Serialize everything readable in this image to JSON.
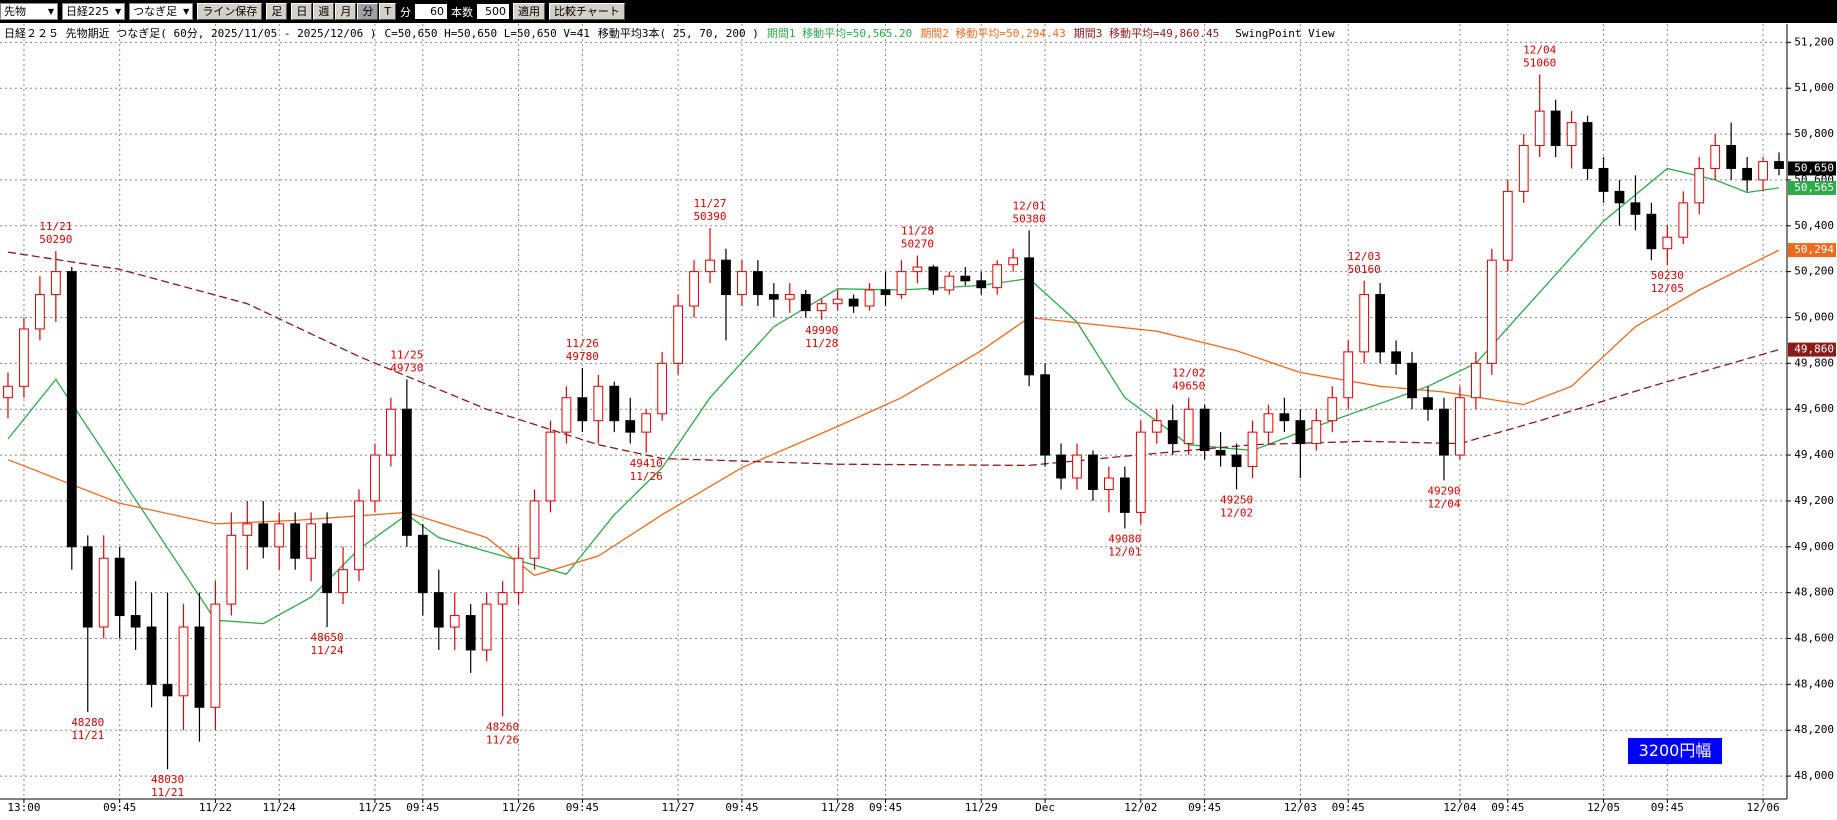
{
  "toolbar": {
    "market": "先物",
    "symbol": "日経225",
    "bar_type": "つなぎ足",
    "save_button": "ライン保存",
    "bar_label": "足",
    "periods": [
      "日",
      "週",
      "月",
      "分",
      "T"
    ],
    "active_period": "分",
    "interval_label": "分",
    "interval": 60,
    "count_label": "本数",
    "count": 500,
    "apply": "適用",
    "compare": "比較チャート"
  },
  "chart_data": {
    "type": "candlestick",
    "title": "日経２２５ 先物期近 つなぎ足( 60分, 2025/11/05 - 2025/12/06 )",
    "ohlc_summary": "C=50,650 H=50,650 L=50,650 V=41",
    "ma_title": "移動平均3本( 25, 70, 200 )",
    "indicator_label": "SwingPoint View",
    "up_color": "#e00000",
    "down_color": "#000000",
    "ohlc": [
      [
        49650,
        49760,
        49560,
        49700
      ],
      [
        49700,
        50000,
        49650,
        49950
      ],
      [
        49950,
        50180,
        49900,
        50100
      ],
      [
        50100,
        50290,
        49980,
        50200
      ],
      [
        50200,
        50220,
        48900,
        49000
      ],
      [
        49000,
        49050,
        48280,
        48650
      ],
      [
        48650,
        49050,
        48600,
        48950
      ],
      [
        48950,
        49000,
        48600,
        48700
      ],
      [
        48700,
        48850,
        48550,
        48650
      ],
      [
        48650,
        48800,
        48300,
        48400
      ],
      [
        48400,
        48800,
        48030,
        48350
      ],
      [
        48350,
        48750,
        48200,
        48650
      ],
      [
        48650,
        48800,
        48150,
        48300
      ],
      [
        48300,
        48850,
        48200,
        48750
      ],
      [
        48750,
        49150,
        48700,
        49050
      ],
      [
        49050,
        49200,
        48900,
        49100
      ],
      [
        49100,
        49200,
        48950,
        49000
      ],
      [
        49000,
        49150,
        48900,
        49100
      ],
      [
        49100,
        49150,
        48900,
        48950
      ],
      [
        48950,
        49150,
        48850,
        49100
      ],
      [
        49100,
        49150,
        48650,
        48800
      ],
      [
        48800,
        49000,
        48750,
        48900
      ],
      [
        48900,
        49250,
        48850,
        49200
      ],
      [
        49200,
        49450,
        49150,
        49400
      ],
      [
        49400,
        49650,
        49350,
        49600
      ],
      [
        49600,
        49730,
        49000,
        49050
      ],
      [
        49050,
        49100,
        48700,
        48800
      ],
      [
        48800,
        48900,
        48550,
        48650
      ],
      [
        48650,
        48800,
        48550,
        48700
      ],
      [
        48700,
        48750,
        48450,
        48550
      ],
      [
        48550,
        48800,
        48500,
        48750
      ],
      [
        48750,
        48850,
        48260,
        48800
      ],
      [
        48800,
        49000,
        48750,
        48950
      ],
      [
        48950,
        49250,
        48900,
        49200
      ],
      [
        49200,
        49550,
        49150,
        49500
      ],
      [
        49500,
        49700,
        49450,
        49650
      ],
      [
        49650,
        49780,
        49500,
        49550
      ],
      [
        49550,
        49750,
        49450,
        49700
      ],
      [
        49700,
        49720,
        49500,
        49550
      ],
      [
        49550,
        49650,
        49450,
        49500
      ],
      [
        49500,
        49600,
        49410,
        49580
      ],
      [
        49580,
        49850,
        49550,
        49800
      ],
      [
        49800,
        50100,
        49750,
        50050
      ],
      [
        50050,
        50250,
        50000,
        50200
      ],
      [
        50200,
        50390,
        50150,
        50250
      ],
      [
        50250,
        50300,
        49900,
        50100
      ],
      [
        50100,
        50250,
        50050,
        50200
      ],
      [
        50200,
        50250,
        50050,
        50100
      ],
      [
        50100,
        50150,
        50000,
        50080
      ],
      [
        50080,
        50150,
        50020,
        50100
      ],
      [
        50100,
        50120,
        50000,
        50030
      ],
      [
        50030,
        50080,
        49990,
        50060
      ],
      [
        50060,
        50120,
        50030,
        50080
      ],
      [
        50080,
        50100,
        50020,
        50050
      ],
      [
        50050,
        50150,
        50030,
        50120
      ],
      [
        50120,
        50200,
        50050,
        50100
      ],
      [
        50100,
        50250,
        50080,
        50200
      ],
      [
        50200,
        50270,
        50150,
        50220
      ],
      [
        50220,
        50230,
        50100,
        50120
      ],
      [
        50120,
        50200,
        50100,
        50180
      ],
      [
        50180,
        50220,
        50140,
        50160
      ],
      [
        50160,
        50200,
        50100,
        50130
      ],
      [
        50130,
        50250,
        50100,
        50230
      ],
      [
        50230,
        50300,
        50200,
        50260
      ],
      [
        50260,
        50380,
        49700,
        49750
      ],
      [
        49750,
        49800,
        49350,
        49400
      ],
      [
        49400,
        49450,
        49250,
        49300
      ],
      [
        49300,
        49450,
        49250,
        49400
      ],
      [
        49400,
        49420,
        49200,
        49250
      ],
      [
        49250,
        49350,
        49150,
        49300
      ],
      [
        49300,
        49350,
        49080,
        49150
      ],
      [
        49150,
        49550,
        49100,
        49500
      ],
      [
        49500,
        49600,
        49450,
        49550
      ],
      [
        49550,
        49620,
        49400,
        49450
      ],
      [
        49450,
        49650,
        49400,
        49600
      ],
      [
        49600,
        49620,
        49380,
        49420
      ],
      [
        49420,
        49500,
        49350,
        49400
      ],
      [
        49400,
        49450,
        49250,
        49350
      ],
      [
        49350,
        49550,
        49300,
        49500
      ],
      [
        49500,
        49620,
        49450,
        49580
      ],
      [
        49580,
        49650,
        49500,
        49550
      ],
      [
        49550,
        49600,
        49300,
        49450
      ],
      [
        49450,
        49600,
        49420,
        49550
      ],
      [
        49550,
        49700,
        49500,
        49650
      ],
      [
        49650,
        49900,
        49600,
        49850
      ],
      [
        49850,
        50160,
        49800,
        50100
      ],
      [
        50100,
        50150,
        49800,
        49850
      ],
      [
        49850,
        49900,
        49750,
        49800
      ],
      [
        49800,
        49850,
        49600,
        49650
      ],
      [
        49650,
        49700,
        49550,
        49600
      ],
      [
        49600,
        49650,
        49290,
        49400
      ],
      [
        49400,
        49700,
        49380,
        49650
      ],
      [
        49650,
        49850,
        49600,
        49800
      ],
      [
        49800,
        50300,
        49750,
        50250
      ],
      [
        50250,
        50600,
        50200,
        50550
      ],
      [
        50550,
        50800,
        50500,
        50750
      ],
      [
        50750,
        51060,
        50700,
        50900
      ],
      [
        50900,
        50950,
        50700,
        50750
      ],
      [
        50750,
        50900,
        50650,
        50850
      ],
      [
        50850,
        50880,
        50600,
        50650
      ],
      [
        50650,
        50700,
        50500,
        50550
      ],
      [
        50550,
        50600,
        50400,
        50500
      ],
      [
        50500,
        50620,
        50380,
        50450
      ],
      [
        50450,
        50500,
        50250,
        50300
      ],
      [
        50300,
        50400,
        50230,
        50350
      ],
      [
        50350,
        50550,
        50320,
        50500
      ],
      [
        50500,
        50700,
        50450,
        50650
      ],
      [
        50650,
        50800,
        50600,
        50750
      ],
      [
        50750,
        50850,
        50600,
        50650
      ],
      [
        50650,
        50700,
        50550,
        50600
      ],
      [
        50600,
        50700,
        50550,
        50680
      ],
      [
        50680,
        50720,
        50620,
        50650
      ]
    ],
    "series": [
      {
        "name": "期間1 移動平均=50,565.20",
        "color": "#2eaa4a",
        "dash": false,
        "x": [
          0,
          3,
          13,
          16,
          19,
          22,
          25,
          27,
          31,
          35,
          38,
          41,
          44,
          48,
          52,
          56,
          61,
          64,
          67,
          70,
          74,
          78,
          81,
          85,
          89,
          92,
          96,
          100,
          104,
          107,
          109,
          111
        ],
        "values": [
          49470,
          49730,
          48680,
          48665,
          48780,
          48990,
          49140,
          49040,
          48960,
          48880,
          49140,
          49345,
          49650,
          49960,
          50125,
          50120,
          50140,
          50170,
          49980,
          49650,
          49445,
          49420,
          49500,
          49600,
          49700,
          49800,
          50110,
          50420,
          50650,
          50600,
          50545,
          50565
        ]
      },
      {
        "name": "期間2 移動平均=50,294.43",
        "color": "#f06a1e",
        "dash": false,
        "x": [
          0,
          7,
          13,
          18,
          25,
          30,
          33,
          37,
          41,
          46,
          52,
          56,
          61,
          64,
          68,
          72,
          77,
          81,
          86,
          90,
          95,
          98,
          102,
          106,
          111
        ],
        "values": [
          49380,
          49190,
          49100,
          49115,
          49150,
          49040,
          48875,
          48960,
          49140,
          49345,
          49525,
          49650,
          49855,
          50000,
          49970,
          49940,
          49855,
          49760,
          49700,
          49675,
          49620,
          49700,
          49960,
          50120,
          50294
        ]
      },
      {
        "name": "期間3 移動平均=49,860.45",
        "color": "#8b1a1a",
        "dash": true,
        "x": [
          0,
          7,
          15,
          22,
          30,
          37,
          41,
          52,
          64,
          70,
          78,
          85,
          91,
          96,
          103,
          111
        ],
        "values": [
          50285,
          50210,
          50060,
          49830,
          49600,
          49445,
          49385,
          49360,
          49355,
          49395,
          49445,
          49460,
          49450,
          49550,
          49700,
          49860
        ]
      }
    ],
    "xticks": [
      {
        "value": 1,
        "label": "13:00"
      },
      {
        "value": 7,
        "label": "09:45"
      },
      {
        "value": 13,
        "label": "11/22"
      },
      {
        "value": 17,
        "label": "11/24"
      },
      {
        "value": 23,
        "label": "11/25"
      },
      {
        "value": 26,
        "label": "09:45"
      },
      {
        "value": 32,
        "label": "11/26"
      },
      {
        "value": 36,
        "label": "09:45"
      },
      {
        "value": 42,
        "label": "11/27"
      },
      {
        "value": 46,
        "label": "09:45"
      },
      {
        "value": 52,
        "label": "11/28"
      },
      {
        "value": 55,
        "label": "09:45"
      },
      {
        "value": 61,
        "label": "11/29"
      },
      {
        "value": 65,
        "label": "Dec"
      },
      {
        "value": 71,
        "label": "12/02"
      },
      {
        "value": 75,
        "label": "09:45"
      },
      {
        "value": 81,
        "label": "12/03"
      },
      {
        "value": 84,
        "label": "09:45"
      },
      {
        "value": 91,
        "label": "12/04"
      },
      {
        "value": 94,
        "label": "09:45"
      },
      {
        "value": 100,
        "label": "12/05"
      },
      {
        "value": 104,
        "label": "09:45"
      },
      {
        "value": 110,
        "label": "12/06"
      }
    ],
    "xlim": [
      -0.5,
      111.5
    ],
    "ylim": [
      47900,
      51280
    ],
    "yticks": [
      {
        "value": 48000,
        "label": "48,000"
      },
      {
        "value": 48200,
        "label": "48,200"
      },
      {
        "value": 48400,
        "label": "48,400"
      },
      {
        "value": 48600,
        "label": "48,600"
      },
      {
        "value": 48800,
        "label": "48,800"
      },
      {
        "value": 49000,
        "label": "49,000"
      },
      {
        "value": 49200,
        "label": "49,200"
      },
      {
        "value": 49400,
        "label": "49,400"
      },
      {
        "value": 49600,
        "label": "49,600"
      },
      {
        "value": 49800,
        "label": "49,800"
      },
      {
        "value": 50000,
        "label": "50,000"
      },
      {
        "value": 50200,
        "label": "50,200"
      },
      {
        "value": 50400,
        "label": "50,400"
      },
      {
        "value": 50600,
        "label": "50,600"
      },
      {
        "value": 50800,
        "label": "50,800"
      },
      {
        "value": 51000,
        "label": "51,000"
      },
      {
        "value": 51200,
        "label": "51,200"
      }
    ],
    "grid": true,
    "swing_color": "#e00000",
    "swing_points": [
      {
        "x": 3,
        "date": "11/21",
        "price": 50290
      },
      {
        "x": 5,
        "date": "11/21",
        "price": 48280
      },
      {
        "x": 10,
        "date": "11/21",
        "price": 48030
      },
      {
        "x": 20,
        "date": "11/24",
        "price": 48650
      },
      {
        "x": 25,
        "date": "11/25",
        "price": 49730
      },
      {
        "x": 31,
        "date": "11/26",
        "price": 48260
      },
      {
        "x": 36,
        "date": "11/26",
        "price": 49780
      },
      {
        "x": 40,
        "date": "11/26",
        "price": 49410
      },
      {
        "x": 44,
        "date": "11/27",
        "price": 50390
      },
      {
        "x": 51,
        "date": "11/28",
        "price": 49990
      },
      {
        "x": 57,
        "date": "11/28",
        "price": 50270
      },
      {
        "x": 64,
        "date": "12/01",
        "price": 50380
      },
      {
        "x": 70,
        "date": "12/01",
        "price": 49080
      },
      {
        "x": 74,
        "date": "12/02",
        "price": 49650
      },
      {
        "x": 77,
        "date": "12/02",
        "price": 49250
      },
      {
        "x": 85,
        "date": "12/03",
        "price": 50160
      },
      {
        "x": 90,
        "date": "12/04",
        "price": 49290
      },
      {
        "x": 96,
        "date": "12/04",
        "price": 51060
      },
      {
        "x": 104,
        "date": "12/05",
        "price": 50230
      }
    ],
    "markers": [
      {
        "value": 50650,
        "label": "50,650",
        "color": "#000000"
      },
      {
        "value": 50565,
        "label": "50,565",
        "color": "#2eaa4a"
      },
      {
        "value": 50294,
        "label": "50,294",
        "color": "#f06a1e"
      },
      {
        "value": 49860,
        "label": "49,860",
        "color": "#8b1a1a"
      }
    ],
    "range_badge": "3200円幅"
  }
}
